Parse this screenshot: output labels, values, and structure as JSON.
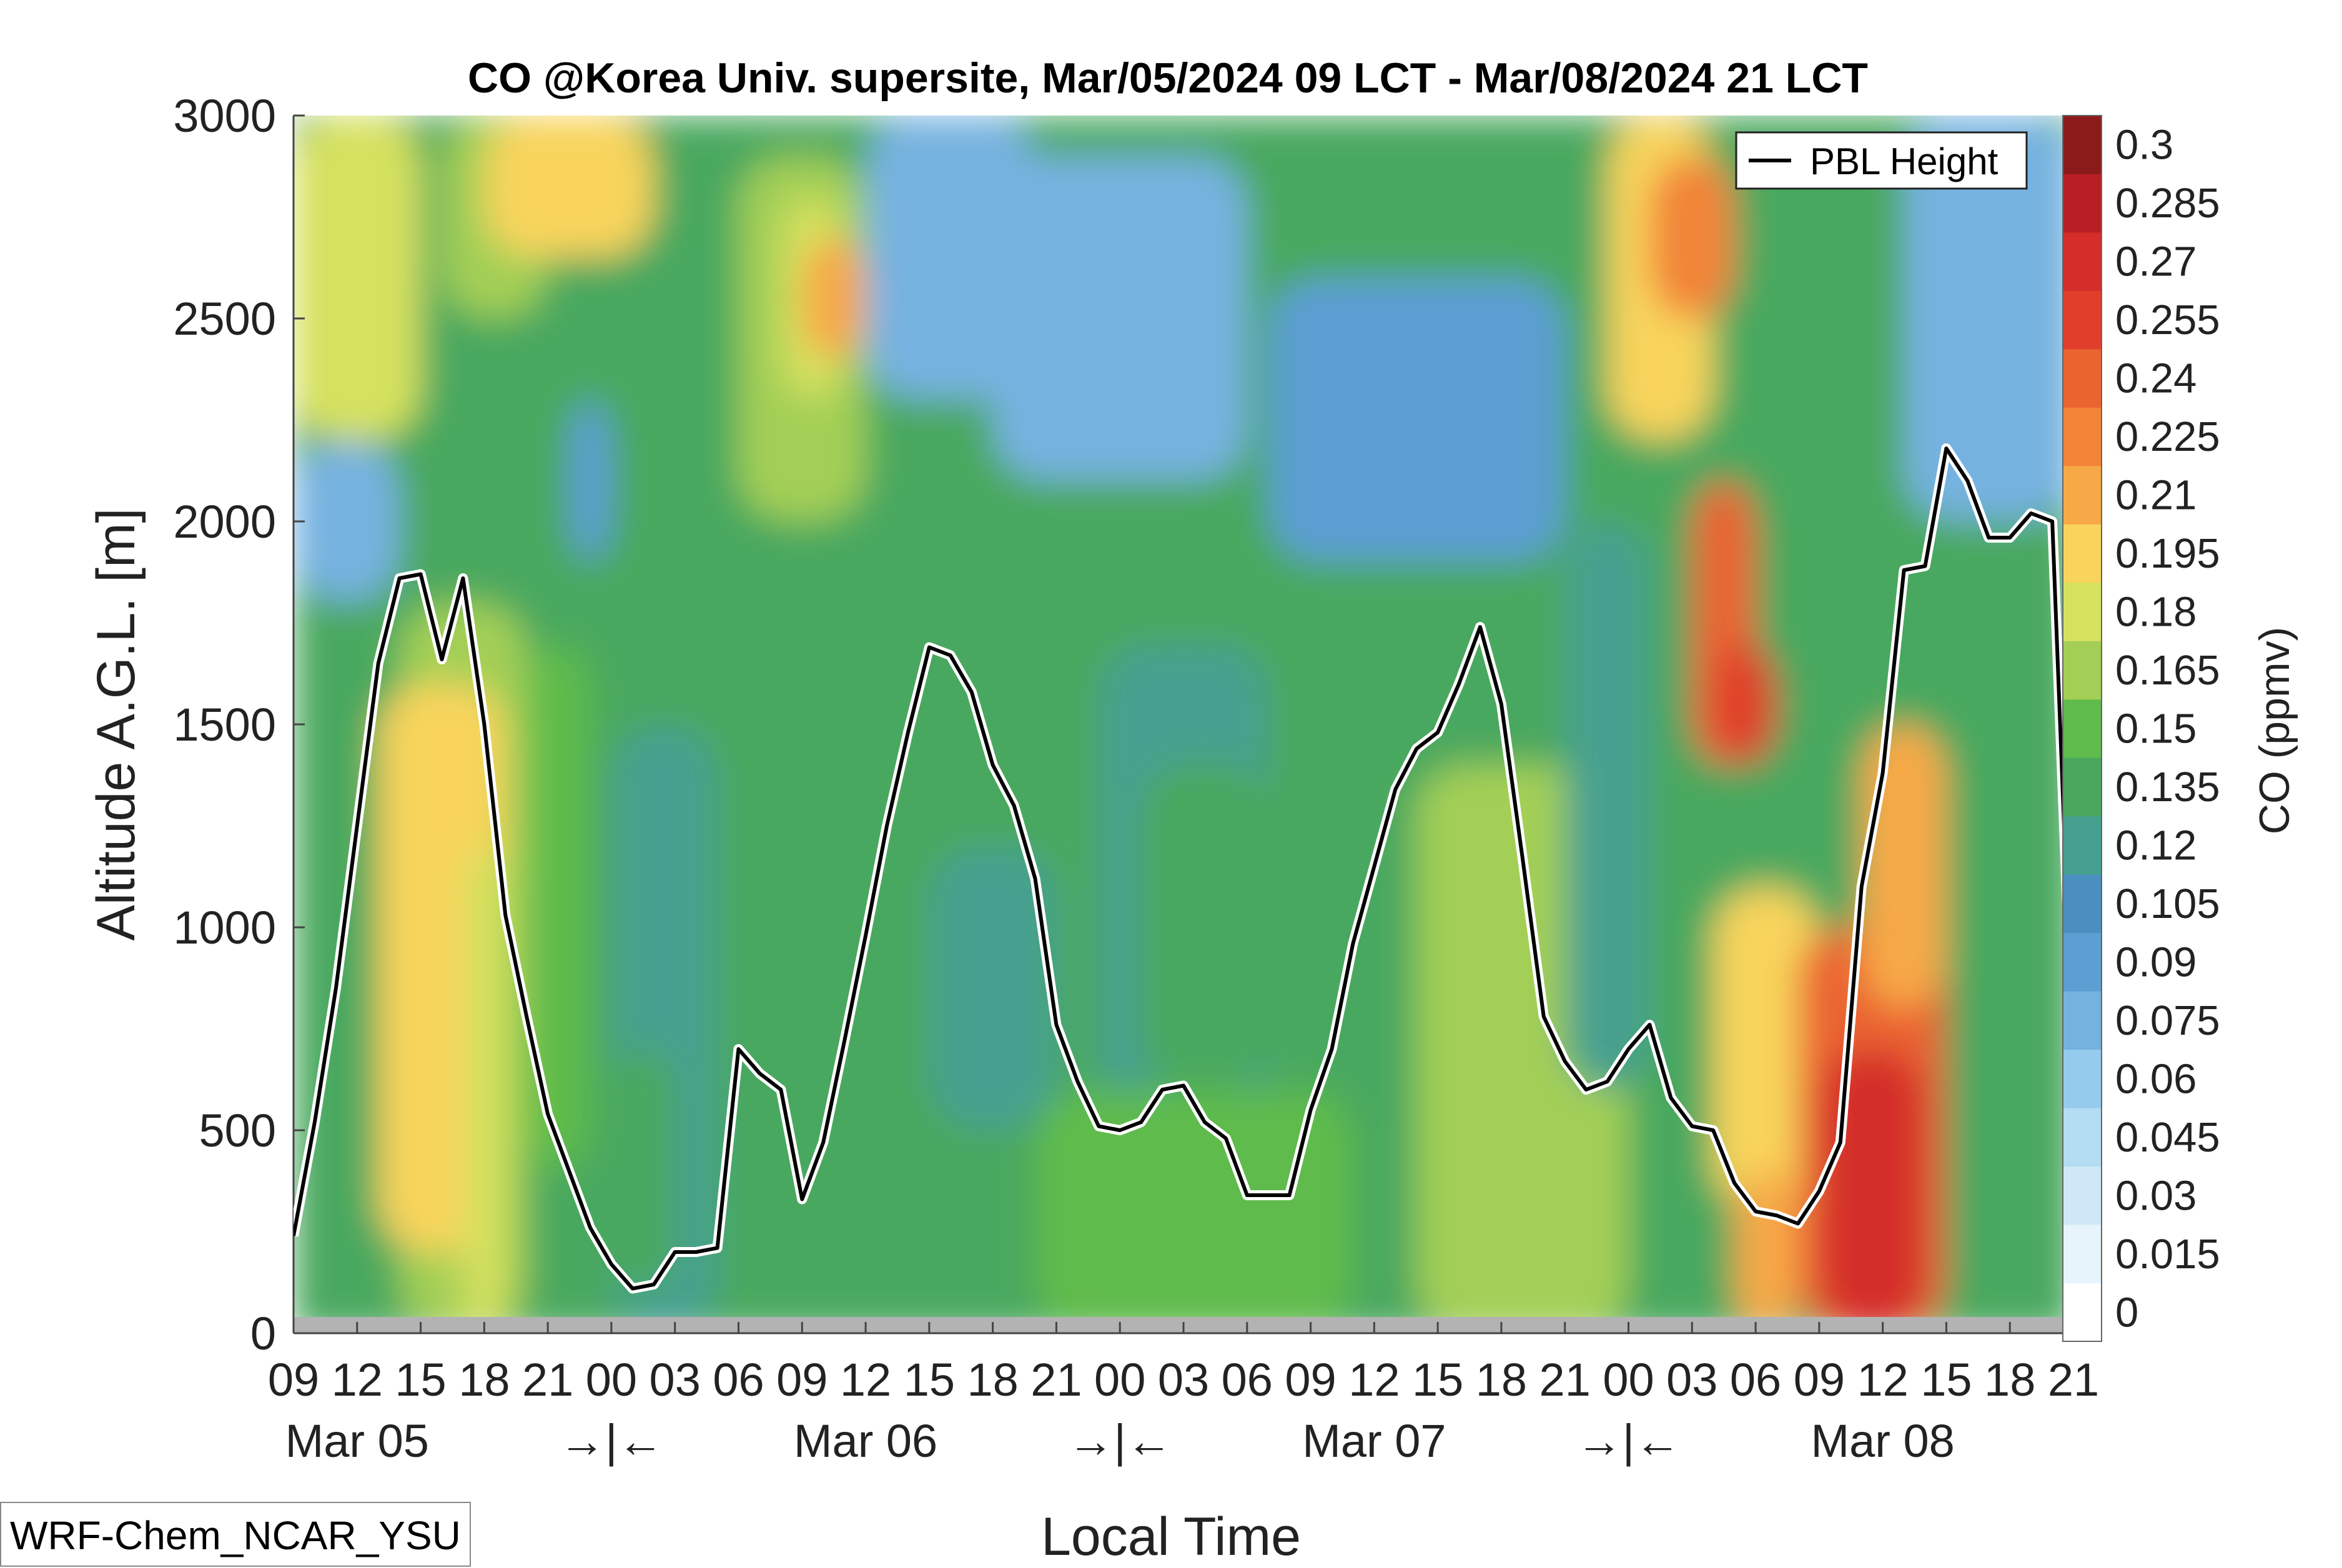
{
  "chart_data": {
    "type": "heatmap",
    "title": "CO @Korea Univ. supersite, Mar/05/2024 09 LCT - Mar/08/2024 21 LCT",
    "xlabel": "Local Time",
    "ylabel": "Altitude A.G.L. [m]",
    "colorbar_label": "CO (ppmv)",
    "ylim": [
      0,
      3000
    ],
    "yticks": [
      "0",
      "500",
      "1000",
      "1500",
      "2000",
      "2500",
      "3000"
    ],
    "xlim_hours": [
      0,
      84
    ],
    "xtick_labels": [
      "09",
      "12",
      "15",
      "18",
      "21",
      "00",
      "03",
      "06",
      "09",
      "12",
      "15",
      "18",
      "21",
      "00",
      "03",
      "06",
      "09",
      "12",
      "15",
      "18",
      "21",
      "00",
      "03",
      "06",
      "09",
      "12",
      "15",
      "18",
      "21"
    ],
    "date_labels": [
      {
        "text": "Mar 05",
        "hour": 3
      },
      {
        "text": "Mar 06",
        "hour": 27
      },
      {
        "text": "Mar 07",
        "hour": 51
      },
      {
        "text": "Mar 08",
        "hour": 75
      }
    ],
    "night_markers": [
      {
        "text": "→|←",
        "hour": 15
      },
      {
        "text": "→|←",
        "hour": 39
      },
      {
        "text": "→|←",
        "hour": 63
      }
    ],
    "colorbar_levels": [
      "0",
      "0.015",
      "0.03",
      "0.045",
      "0.06",
      "0.075",
      "0.09",
      "0.105",
      "0.12",
      "0.135",
      "0.15",
      "0.165",
      "0.18",
      "0.195",
      "0.21",
      "0.225",
      "0.24",
      "0.255",
      "0.27",
      "0.285",
      "0.3"
    ],
    "colorbar_colors": [
      "#ffffff",
      "#e8f4fb",
      "#cfe8f7",
      "#b4dcf2",
      "#95cbec",
      "#76b2e0",
      "#5b9fd3",
      "#4a8fbf",
      "#46a08f",
      "#4aa85e",
      "#5ebb4c",
      "#a3cf56",
      "#d6e15e",
      "#f8d45c",
      "#f7a947",
      "#f28438",
      "#ea6430",
      "#e03f2b",
      "#d42d2a",
      "#b81f24",
      "#8b1a1a"
    ],
    "legend": {
      "label": "PBL Height",
      "position": "top-right"
    },
    "series": [
      {
        "name": "PBL Height",
        "x": [
          0,
          1,
          2,
          3,
          4,
          5,
          6,
          7,
          8,
          9,
          10,
          11,
          12,
          13,
          14,
          15,
          16,
          17,
          18,
          19,
          20,
          21,
          22,
          23,
          24,
          25,
          26,
          27,
          28,
          29,
          30,
          31,
          32,
          33,
          34,
          35,
          36,
          37,
          38,
          39,
          40,
          41,
          42,
          43,
          44,
          45,
          46,
          47,
          48,
          49,
          50,
          51,
          52,
          53,
          54,
          55,
          56,
          57,
          58,
          59,
          60,
          61,
          62,
          63,
          64,
          65,
          66,
          67,
          68,
          69,
          70,
          71,
          72,
          73,
          74,
          75,
          76,
          77,
          78,
          79,
          80,
          81,
          82,
          83,
          84
        ],
        "y": [
          240,
          520,
          850,
          1250,
          1650,
          1860,
          1870,
          1660,
          1860,
          1500,
          1030,
          780,
          540,
          400,
          260,
          170,
          110,
          120,
          200,
          200,
          210,
          700,
          640,
          600,
          330,
          470,
          720,
          980,
          1250,
          1480,
          1690,
          1670,
          1580,
          1400,
          1300,
          1120,
          760,
          620,
          510,
          500,
          520,
          600,
          610,
          520,
          480,
          340,
          340,
          340,
          550,
          700,
          960,
          1150,
          1340,
          1440,
          1480,
          1600,
          1740,
          1550,
          1170,
          780,
          670,
          600,
          620,
          700,
          760,
          580,
          510,
          500,
          370,
          300,
          290,
          270,
          350,
          470,
          1100,
          1380,
          1880,
          1890,
          2180,
          2100,
          1960,
          1960,
          2020,
          2000,
          650
        ]
      }
    ],
    "model_label": "WRF-Chem_NCAR_YSU"
  }
}
